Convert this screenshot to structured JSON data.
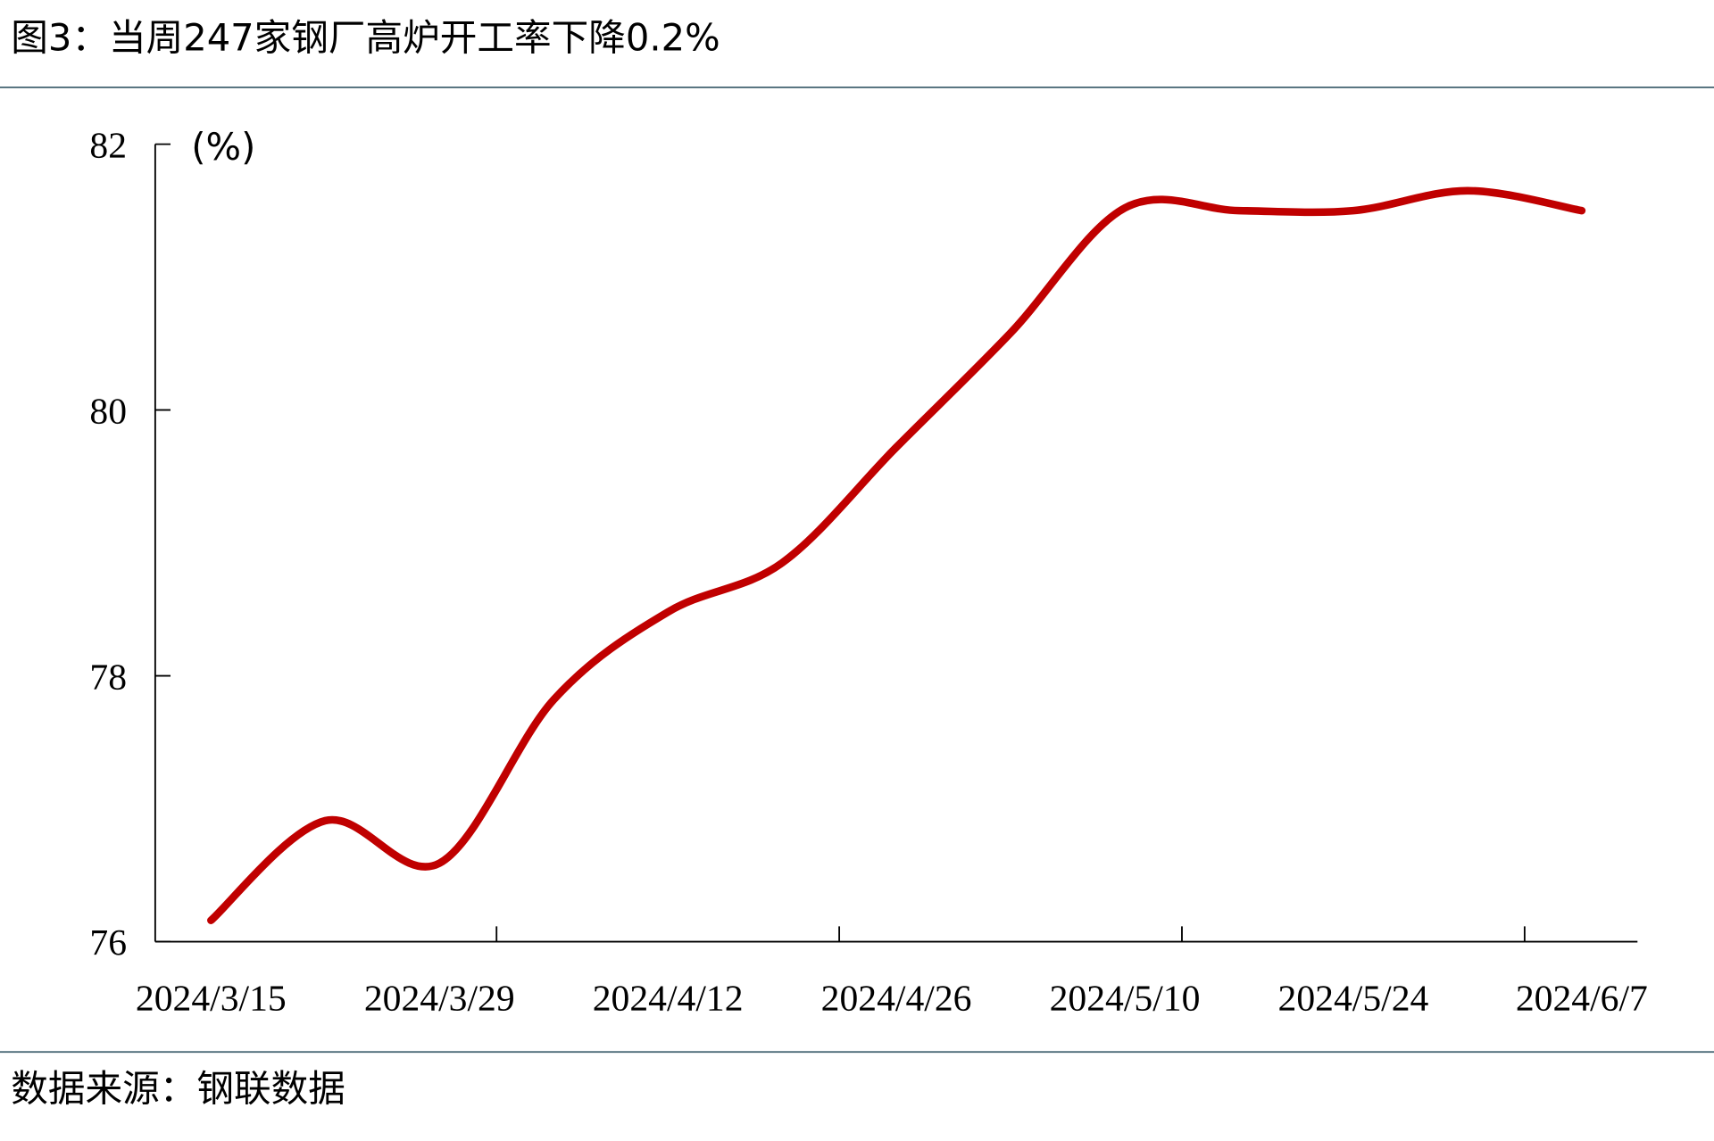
{
  "chart_data": {
    "type": "line",
    "title": "图3：当周247家钢厂高炉开工率下降0.2%",
    "y_label": "(%)",
    "source": "数据来源：钢联数据",
    "categories": [
      "2024/3/15",
      null,
      "2024/3/29",
      null,
      "2024/4/12",
      null,
      "2024/4/26",
      null,
      "2024/5/10",
      null,
      "2024/5/24",
      null,
      "2024/6/7"
    ],
    "series": [
      {
        "name": "高炉开工率",
        "color": "#c00000",
        "values": [
          76.16,
          76.91,
          76.59,
          77.82,
          78.48,
          78.85,
          79.72,
          80.58,
          81.52,
          81.5,
          81.5,
          81.65,
          81.5
        ]
      }
    ],
    "ylim": [
      76,
      82
    ],
    "yticks": [
      76,
      78,
      80,
      82
    ]
  }
}
